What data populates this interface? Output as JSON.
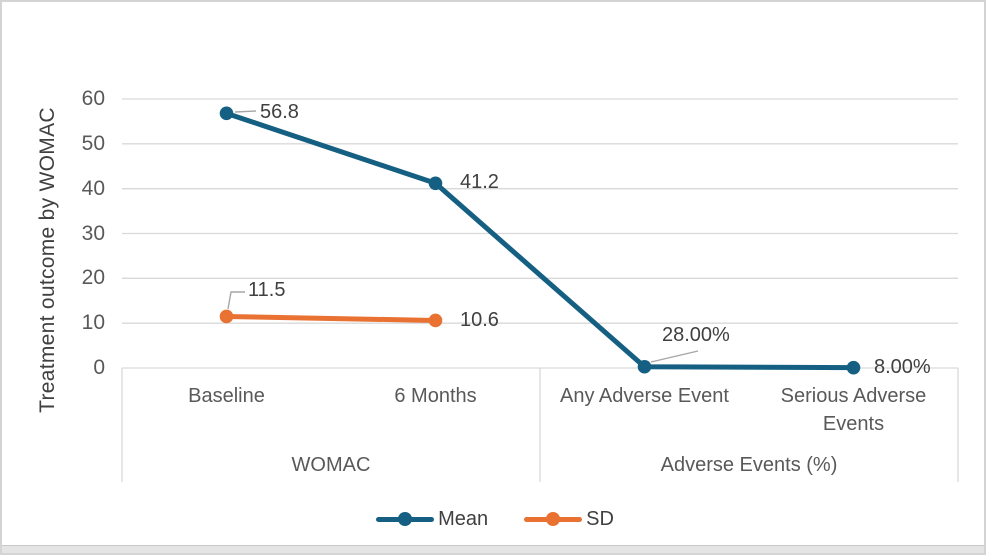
{
  "chart_data": {
    "type": "line",
    "title": "",
    "ylabel": "Treatment outcome by WOMAC",
    "xlabel": "",
    "ylim": [
      0,
      60
    ],
    "yticks": [
      0,
      10,
      20,
      30,
      40,
      50,
      60
    ],
    "grid": true,
    "legend_position": "bottom",
    "categories": [
      "Baseline",
      "6 Months",
      "Any Adverse Event",
      "Serious Adverse Events"
    ],
    "category_groups": [
      {
        "label": "WOMAC",
        "categories": [
          "Baseline",
          "6 Months"
        ]
      },
      {
        "label": "Adverse Events (%)",
        "categories": [
          "Any Adverse Event",
          "Serious Adverse Events"
        ]
      }
    ],
    "series": [
      {
        "name": "Mean",
        "color": "#156082",
        "values": [
          56.8,
          41.2,
          0.28,
          0.08
        ],
        "labels": [
          "56.8",
          "41.2",
          "28.00%",
          "8.00%"
        ]
      },
      {
        "name": "SD",
        "color": "#E97132",
        "values": [
          11.5,
          10.6,
          null,
          null
        ],
        "labels": [
          "11.5",
          "10.6",
          "",
          ""
        ]
      }
    ],
    "colors": {
      "gridline": "#d9d9d9",
      "axis_box": "#d9d9d9",
      "leader_line": "#a6a6a6",
      "tick_text": "#595959",
      "label_text": "#404040"
    }
  }
}
